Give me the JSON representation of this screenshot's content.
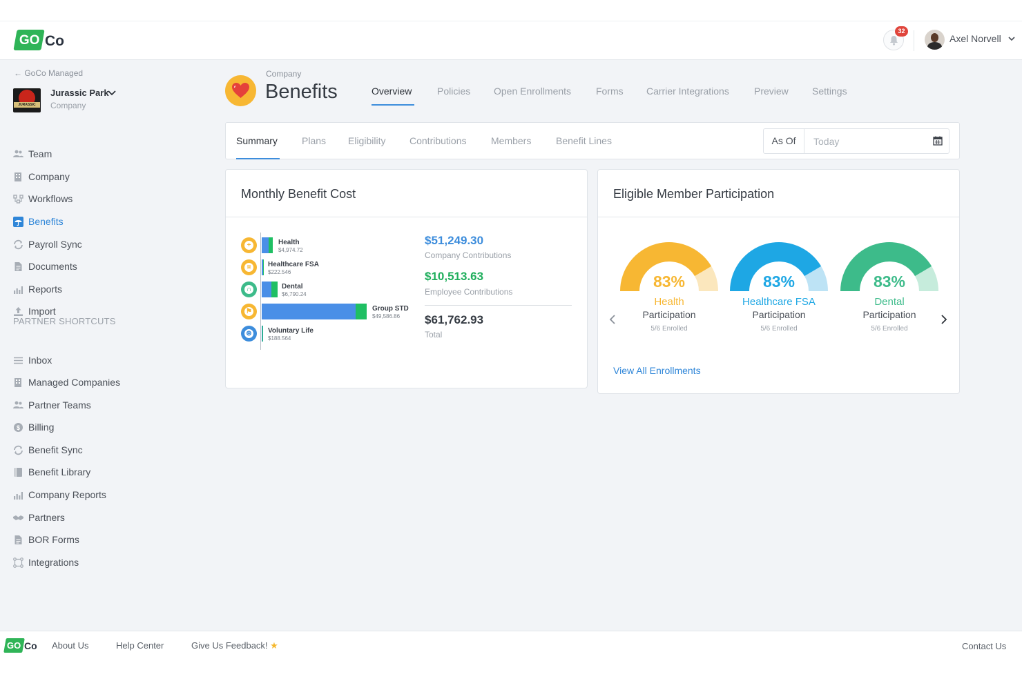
{
  "header": {
    "logo_go": "GO",
    "logo_co": "Co",
    "notification_count": "32",
    "user_name": "Axel Norvell"
  },
  "sidebar": {
    "back_label": "← GoCo Managed",
    "company_name": "Jurassic Park",
    "company_type": "Company",
    "company_logo_text": "JURASSIC PARK",
    "items": [
      {
        "label": "Team",
        "icon": "team-icon"
      },
      {
        "label": "Company",
        "icon": "building-icon"
      },
      {
        "label": "Workflows",
        "icon": "workflow-icon"
      },
      {
        "label": "Benefits",
        "icon": "umbrella-icon",
        "active": true
      },
      {
        "label": "Payroll Sync",
        "icon": "sync-icon"
      },
      {
        "label": "Documents",
        "icon": "document-icon"
      },
      {
        "label": "Reports",
        "icon": "bar-chart-icon"
      },
      {
        "label": "Import",
        "icon": "upload-icon"
      }
    ],
    "partner_heading": "PARTNER SHORTCUTS",
    "partner_items": [
      {
        "label": "Inbox",
        "icon": "list-icon"
      },
      {
        "label": "Managed Companies",
        "icon": "building-icon"
      },
      {
        "label": "Partner Teams",
        "icon": "team-icon"
      },
      {
        "label": "Billing",
        "icon": "dollar-icon"
      },
      {
        "label": "Benefit Sync",
        "icon": "sync-icon"
      },
      {
        "label": "Benefit Library",
        "icon": "book-icon"
      },
      {
        "label": "Company Reports",
        "icon": "bar-chart-icon"
      },
      {
        "label": "Partners",
        "icon": "handshake-icon"
      },
      {
        "label": "BOR Forms",
        "icon": "document-icon"
      },
      {
        "label": "Integrations",
        "icon": "integration-icon"
      }
    ]
  },
  "page": {
    "eyebrow": "Company",
    "title": "Benefits",
    "tabs": [
      "Overview",
      "Policies",
      "Open Enrollments",
      "Forms",
      "Carrier Integrations",
      "Preview",
      "Settings"
    ],
    "active_tab": "Overview"
  },
  "subnav": {
    "tabs": [
      "Summary",
      "Plans",
      "Eligibility",
      "Contributions",
      "Members",
      "Benefit Lines"
    ],
    "active_tab": "Summary",
    "as_of_label": "As Of",
    "as_of_value": "Today"
  },
  "cost_card": {
    "title": "Monthly Benefit Cost",
    "rows": [
      {
        "name": "Health",
        "value": "$4,974.72",
        "icon": "first-aid-icon",
        "icon_color": "#f7b733"
      },
      {
        "name": "Healthcare FSA",
        "value": "$222.546",
        "icon": "piggy-bank-icon",
        "icon_color": "#f7b733"
      },
      {
        "name": "Dental",
        "value": "$6,790.24",
        "icon": "tooth-icon",
        "icon_color": "#3dbb8a"
      },
      {
        "name": "Group STD",
        "value": "$49,586.86",
        "icon": "bandage-icon",
        "icon_color": "#f7b733"
      },
      {
        "name": "Voluntary Life",
        "value": "$188.564",
        "icon": "life-icon",
        "icon_color": "#3d8ddc"
      }
    ],
    "company_amount": "$51,249.30",
    "company_label": "Company Contributions",
    "employee_amount": "$10,513.63",
    "employee_label": "Employee Contributions",
    "total_amount": "$61,762.93",
    "total_label": "Total",
    "colors": {
      "company": "#4a8fe7",
      "employee": "#1fbf63"
    }
  },
  "participation_card": {
    "title": "Eligible Member Participation",
    "gauges": [
      {
        "pct": "83%",
        "value": 0.83,
        "name": "Health",
        "sub": "Participation",
        "enrolled": "5/6 Enrolled",
        "color": "#f7b733",
        "track": "#fbe7bd"
      },
      {
        "pct": "83%",
        "value": 0.83,
        "name": "Healthcare FSA",
        "sub": "Participation",
        "enrolled": "5/6 Enrolled",
        "color": "#1ea7e4",
        "track": "#bde3f5"
      },
      {
        "pct": "83%",
        "value": 0.83,
        "name": "Dental",
        "sub": "Participation",
        "enrolled": "5/6 Enrolled",
        "color": "#3dbb8a",
        "track": "#c6ecdc"
      }
    ],
    "view_all": "View All Enrollments"
  },
  "footer": {
    "links": [
      "About Us",
      "Help Center",
      "Give Us Feedback!"
    ],
    "contact": "Contact Us"
  }
}
